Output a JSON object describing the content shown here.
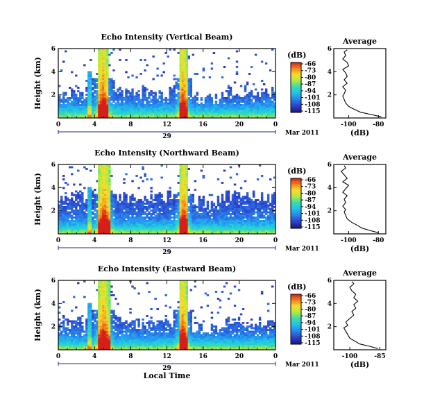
{
  "chart_data": [
    {
      "type": "heatmap",
      "title": "Echo Intensity (Vertical Beam)",
      "ylabel": "Height (km)",
      "xlabel": "",
      "x_ticks": [
        "0",
        "4",
        "8",
        "12",
        "16",
        "20",
        "0"
      ],
      "y_ticks": [
        "2",
        "4",
        "6"
      ],
      "xlim": [
        0,
        24
      ],
      "ylim": [
        0,
        6
      ],
      "date_day": "29",
      "date_month": "Mar 2011",
      "colorbar_unit": "(dB)",
      "colorbar_ticks": [
        "-66",
        "-73",
        "-80",
        "-87",
        "-94",
        "-101",
        "-108",
        "-115"
      ],
      "clim": [
        -115,
        -66
      ],
      "rain_events": [
        [
          4.3,
          5.6
        ],
        [
          13.4,
          14.2
        ]
      ],
      "echo_top_km": 2.2,
      "profile": {
        "title": "Average",
        "xlabel": "(dB)",
        "x_ticks": [
          "-100",
          "-80"
        ],
        "xlim": [
          -110,
          -75
        ],
        "y_ticks": [
          "2",
          "4",
          "6"
        ],
        "ylim": [
          0,
          6
        ],
        "height_km": [
          0.1,
          0.3,
          0.5,
          0.8,
          1.0,
          1.3,
          1.6,
          1.9,
          2.1,
          2.4,
          2.7,
          3.0,
          3.3,
          3.6,
          3.9,
          4.2,
          4.5,
          4.8,
          5.1,
          5.4,
          5.7,
          5.9
        ],
        "db": [
          -78,
          -85,
          -92,
          -97,
          -100,
          -102,
          -103,
          -104,
          -103,
          -102,
          -104,
          -101,
          -103,
          -101,
          -102,
          -104,
          -100,
          -101,
          -104,
          -102,
          -103,
          -101
        ]
      }
    },
    {
      "type": "heatmap",
      "title": "Echo Intensity (Northward Beam)",
      "ylabel": "Height (km)",
      "xlabel": "",
      "x_ticks": [
        "0",
        "4",
        "8",
        "12",
        "16",
        "20",
        "0"
      ],
      "y_ticks": [
        "2",
        "4",
        "6"
      ],
      "xlim": [
        0,
        24
      ],
      "ylim": [
        0,
        6
      ],
      "date_day": "29",
      "date_month": "Mar 2011",
      "colorbar_unit": "(dB)",
      "colorbar_ticks": [
        "-66",
        "-73",
        "-80",
        "-87",
        "-94",
        "-101",
        "-108",
        "-115"
      ],
      "clim": [
        -115,
        -66
      ],
      "rain_events": [
        [
          4.4,
          5.8
        ],
        [
          13.4,
          14.3
        ]
      ],
      "echo_top_km": 3.2,
      "profile": {
        "title": "Average",
        "xlabel": "(dB)",
        "x_ticks": [
          "-100",
          "-80"
        ],
        "xlim": [
          -110,
          -75
        ],
        "y_ticks": [
          "2",
          "4",
          "6"
        ],
        "ylim": [
          0,
          6
        ],
        "height_km": [
          0.1,
          0.3,
          0.5,
          0.8,
          1.0,
          1.3,
          1.6,
          1.9,
          2.1,
          2.4,
          2.7,
          3.0,
          3.3,
          3.6,
          3.9,
          4.2,
          4.5,
          4.8,
          5.1,
          5.4,
          5.7,
          5.9
        ],
        "db": [
          -80,
          -86,
          -91,
          -95,
          -98,
          -101,
          -102,
          -103,
          -102,
          -104,
          -102,
          -103,
          -101,
          -104,
          -102,
          -100,
          -104,
          -101,
          -103,
          -105,
          -102,
          -103
        ]
      }
    },
    {
      "type": "heatmap",
      "title": "Echo Intensity (Eastward Beam)",
      "ylabel": "Height (km)",
      "xlabel": "Local Time",
      "x_ticks": [
        "0",
        "4",
        "8",
        "12",
        "16",
        "20",
        "0"
      ],
      "y_ticks": [
        "2",
        "4",
        "6"
      ],
      "xlim": [
        0,
        24
      ],
      "ylim": [
        0,
        6
      ],
      "date_day": "29",
      "date_month": "Mar 2011",
      "colorbar_unit": "(dB)",
      "colorbar_ticks": [
        "-66",
        "-73",
        "-80",
        "-87",
        "-94",
        "-101",
        "-108",
        "-115"
      ],
      "clim": [
        -115,
        -66
      ],
      "rain_events": [
        [
          4.3,
          5.7
        ],
        [
          13.3,
          14.2
        ]
      ],
      "echo_top_km": 2.4,
      "profile": {
        "title": "Average",
        "xlabel": "(dB)",
        "x_ticks": [
          "-100",
          "-85"
        ],
        "xlim": [
          -108,
          -82
        ],
        "y_ticks": [
          "2",
          "4",
          "6"
        ],
        "ylim": [
          0,
          6
        ],
        "height_km": [
          0.1,
          0.3,
          0.5,
          0.8,
          1.0,
          1.3,
          1.6,
          1.9,
          2.1,
          2.4,
          2.7,
          3.0,
          3.3,
          3.6,
          3.9,
          4.2,
          4.5,
          4.8,
          5.1,
          5.4,
          5.7,
          5.9
        ],
        "db": [
          -86,
          -90,
          -95,
          -98,
          -100,
          -101,
          -102,
          -103,
          -101,
          -102,
          -100,
          -98,
          -99,
          -97,
          -98,
          -96,
          -98,
          -97,
          -99,
          -100,
          -98,
          -99
        ]
      }
    }
  ]
}
